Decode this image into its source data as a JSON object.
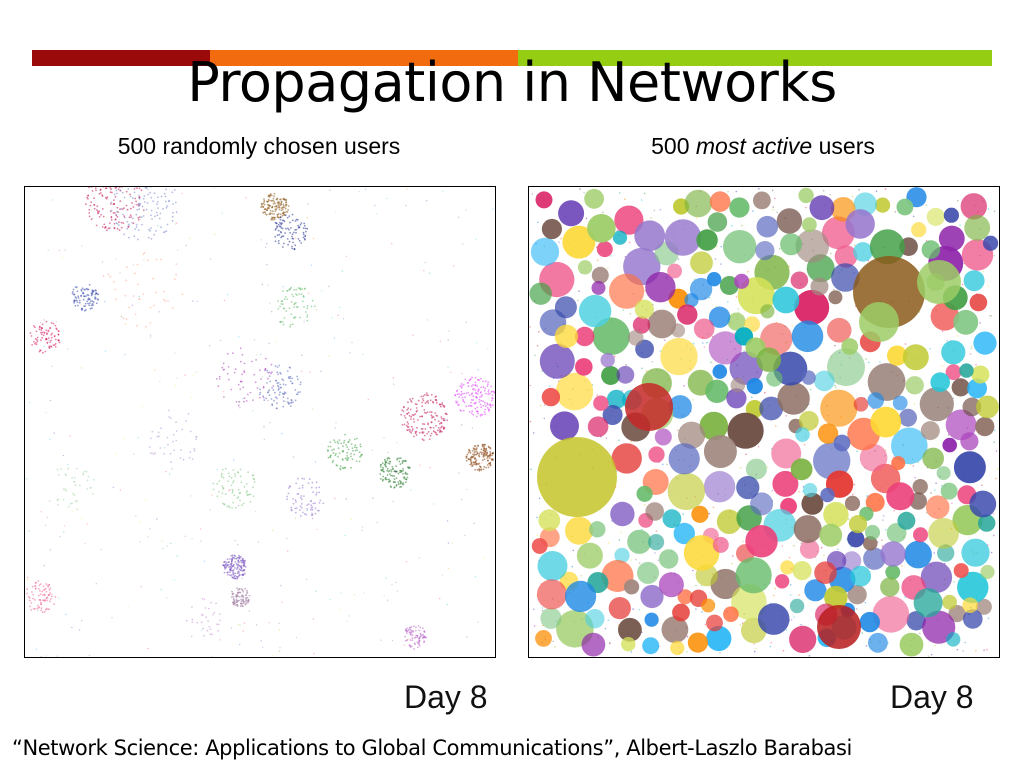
{
  "slide": {
    "title": "Propagation in Networks",
    "accent_colors": [
      "#9b0a0a",
      "#f26b0f",
      "#95cd13"
    ],
    "left_panel": {
      "caption": "500 randomly chosen users",
      "day_text": "Day 8"
    },
    "right_panel": {
      "caption_prefix": "500 ",
      "caption_emphasis": "most active",
      "caption_suffix": " users",
      "day_text": "Day 8"
    },
    "citation": "“Network Science: Applications to Global Communications”, Albert-Laszlo Barabasi"
  }
}
